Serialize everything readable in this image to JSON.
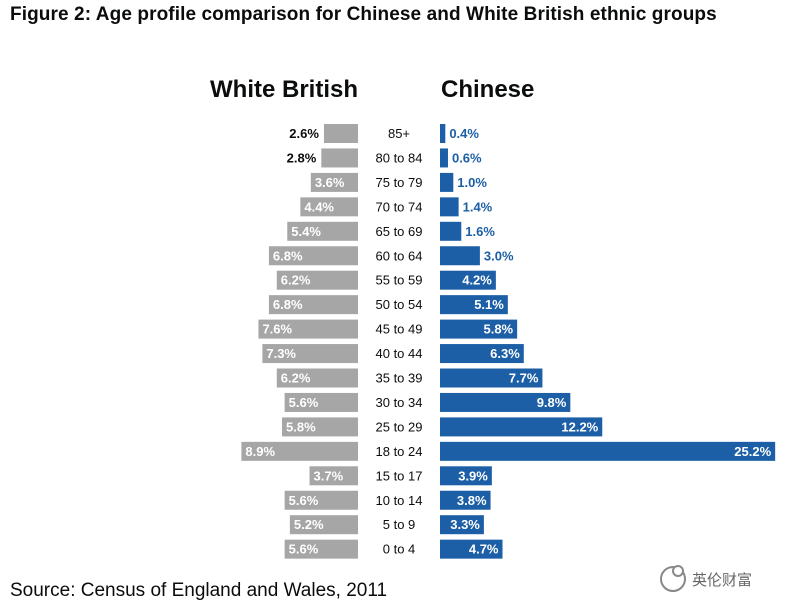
{
  "title": "Figure 2: Age profile comparison for Chinese and White British ethnic groups",
  "source": "Source: Census of England and Wales, 2011",
  "watermark": "英伦财富",
  "colors": {
    "white_british": "#a6a6a6",
    "chinese": "#1d5fa6",
    "label_dark": "#0b0c0c",
    "label_light": "#ffffff"
  },
  "chart_data": {
    "type": "bar",
    "orientation": "horizontal-pyramid",
    "categories": [
      "85+",
      "80 to 84",
      "75 to 79",
      "70 to 74",
      "65 to 69",
      "60 to 64",
      "55 to 59",
      "50 to 54",
      "45 to 49",
      "40 to 44",
      "35 to 39",
      "30 to 34",
      "25 to 29",
      "18 to 24",
      "15 to 17",
      "10 to 14",
      "5 to 9",
      "0 to 4"
    ],
    "series": [
      {
        "name": "White British",
        "values": [
          2.6,
          2.8,
          3.6,
          4.4,
          5.4,
          6.8,
          6.2,
          6.8,
          7.6,
          7.3,
          6.2,
          5.6,
          5.8,
          8.9,
          3.7,
          5.6,
          5.2,
          5.6
        ],
        "labels": [
          "2.6%",
          "2.8%",
          "3.6%",
          "4.4%",
          "5.4%",
          "6.8%",
          "6.2%",
          "6.8%",
          "7.6%",
          "7.3%",
          "6.2%",
          "5.6%",
          "5.8%",
          "8.9%",
          "3.7%",
          "5.6%",
          "5.2%",
          "5.6%"
        ]
      },
      {
        "name": "Chinese",
        "values": [
          0.4,
          0.6,
          1.0,
          1.4,
          1.6,
          3.0,
          4.2,
          5.1,
          5.8,
          6.3,
          7.7,
          9.8,
          12.2,
          25.2,
          3.9,
          3.8,
          3.3,
          4.7
        ],
        "labels": [
          "0.4%",
          "0.6%",
          "1.0%",
          "1.4%",
          "1.6%",
          "3.0%",
          "4.2%",
          "5.1%",
          "5.8%",
          "6.3%",
          "7.7%",
          "9.8%",
          "12.2%",
          "25.2%",
          "3.9%",
          "3.8%",
          "3.3%",
          "4.7%"
        ]
      }
    ]
  }
}
